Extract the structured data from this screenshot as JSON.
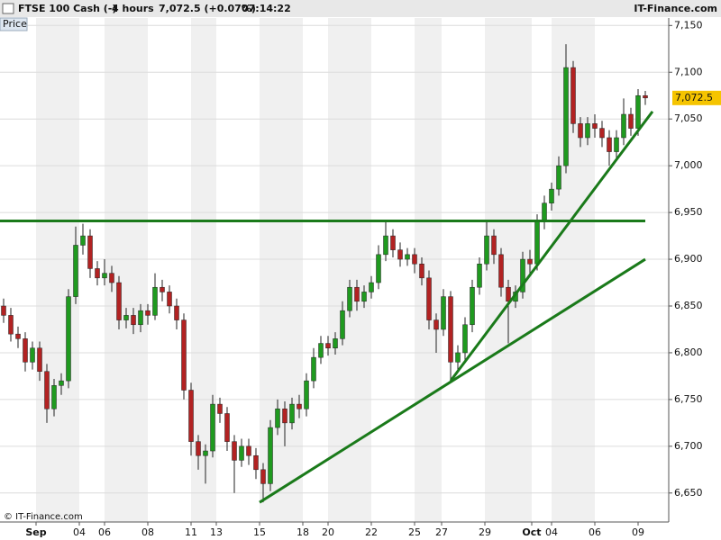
{
  "chart_data": {
    "type": "candlestick",
    "title": "FTSE 100 Cash (-)",
    "interval": "4 hours",
    "quote": "7,072.5 (+0.07%)",
    "time": "07:14:22",
    "brand": "IT-Finance.com",
    "panel_label": "Price",
    "copyright": "© IT-Finance.com",
    "up_color": "#1f9a1f",
    "down_color": "#b22222",
    "x": [
      0,
      1,
      2,
      3,
      4,
      5,
      6,
      7,
      8,
      9,
      10,
      11,
      12,
      13,
      14,
      15,
      16,
      17,
      18,
      19,
      20,
      21,
      22,
      23,
      24,
      25,
      26,
      27,
      28,
      29,
      30,
      31,
      32,
      33,
      34,
      35,
      36,
      37,
      38,
      39,
      40,
      41,
      42,
      43,
      44,
      45,
      46,
      47,
      48,
      49,
      50,
      51,
      52,
      53,
      54,
      55,
      56,
      57,
      58,
      59,
      60,
      61,
      62,
      63,
      64,
      65,
      66,
      67,
      68,
      69,
      70,
      71,
      72,
      73,
      74,
      75,
      76,
      77,
      78,
      79,
      80,
      81,
      82,
      83,
      84,
      85,
      86,
      87,
      88,
      89
    ],
    "open": [
      6850,
      6840,
      6820,
      6815,
      6790,
      6805,
      6780,
      6740,
      6765,
      6770,
      6860,
      6915,
      6925,
      6890,
      6880,
      6885,
      6875,
      6835,
      6840,
      6830,
      6845,
      6840,
      6870,
      6865,
      6850,
      6835,
      6760,
      6705,
      6690,
      6695,
      6745,
      6735,
      6705,
      6685,
      6700,
      6690,
      6675,
      6660,
      6720,
      6740,
      6725,
      6745,
      6740,
      6770,
      6795,
      6810,
      6805,
      6815,
      6845,
      6870,
      6855,
      6865,
      6875,
      6905,
      6925,
      6910,
      6900,
      6905,
      6895,
      6880,
      6835,
      6825,
      6860,
      6790,
      6800,
      6830,
      6870,
      6895,
      6925,
      6905,
      6870,
      6855,
      6865,
      6900,
      6895,
      6940,
      6960,
      6975,
      7000,
      7105,
      7045,
      7030,
      7045,
      7040,
      7030,
      7015,
      7030,
      7055,
      7040,
      7075
    ],
    "high": [
      6858,
      6848,
      6828,
      6822,
      6812,
      6812,
      6788,
      6772,
      6778,
      6868,
      6935,
      6938,
      6932,
      6898,
      6900,
      6893,
      6882,
      6848,
      6848,
      6852,
      6852,
      6885,
      6878,
      6872,
      6858,
      6842,
      6768,
      6712,
      6702,
      6755,
      6752,
      6742,
      6712,
      6708,
      6708,
      6698,
      6682,
      6728,
      6750,
      6748,
      6752,
      6755,
      6778,
      6805,
      6818,
      6818,
      6822,
      6855,
      6878,
      6878,
      6872,
      6882,
      6915,
      6940,
      6932,
      6918,
      6912,
      6912,
      6902,
      6888,
      6842,
      6868,
      6866,
      6808,
      6838,
      6878,
      6902,
      6940,
      6932,
      6912,
      6878,
      6872,
      6908,
      6910,
      6948,
      6968,
      6982,
      7010,
      7130,
      7112,
      7052,
      7052,
      7055,
      7048,
      7038,
      7038,
      7072,
      7062,
      7082,
      7080
    ],
    "low": [
      6832,
      6812,
      6805,
      6780,
      6782,
      6770,
      6725,
      6732,
      6755,
      6762,
      6852,
      6905,
      6880,
      6872,
      6872,
      6865,
      6825,
      6826,
      6820,
      6822,
      6830,
      6835,
      6855,
      6842,
      6825,
      6750,
      6690,
      6675,
      6660,
      6688,
      6725,
      6695,
      6650,
      6678,
      6680,
      6665,
      6640,
      6652,
      6712,
      6700,
      6718,
      6730,
      6732,
      6762,
      6788,
      6797,
      6798,
      6808,
      6838,
      6845,
      6848,
      6858,
      6868,
      6898,
      6902,
      6892,
      6893,
      6885,
      6872,
      6825,
      6800,
      6818,
      6770,
      6782,
      6792,
      6822,
      6862,
      6888,
      6895,
      6860,
      6810,
      6848,
      6858,
      6885,
      6888,
      6932,
      6952,
      6968,
      6992,
      7035,
      7020,
      7022,
      7030,
      7020,
      7000,
      7008,
      7022,
      7032,
      7032,
      7065
    ],
    "close": [
      6840,
      6820,
      6815,
      6790,
      6805,
      6780,
      6740,
      6765,
      6770,
      6860,
      6915,
      6925,
      6890,
      6880,
      6885,
      6875,
      6835,
      6840,
      6830,
      6845,
      6840,
      6870,
      6865,
      6850,
      6835,
      6760,
      6705,
      6690,
      6695,
      6745,
      6735,
      6705,
      6685,
      6700,
      6690,
      6675,
      6660,
      6720,
      6740,
      6725,
      6745,
      6740,
      6770,
      6795,
      6810,
      6805,
      6815,
      6845,
      6870,
      6855,
      6865,
      6875,
      6905,
      6925,
      6910,
      6900,
      6905,
      6895,
      6880,
      6835,
      6825,
      6860,
      6790,
      6800,
      6830,
      6870,
      6895,
      6925,
      6905,
      6870,
      6855,
      6865,
      6900,
      6895,
      6940,
      6960,
      6975,
      7000,
      7105,
      7045,
      7030,
      7045,
      7040,
      7030,
      7015,
      7030,
      7055,
      7040,
      7075,
      7072.5
    ],
    "last_price": {
      "value": 7072.5,
      "label": "7,072.5"
    },
    "last_price_color": "#f5c400",
    "trendlines": [
      {
        "x": [
          -0.5,
          89
        ],
        "y": [
          6941,
          6941
        ],
        "color": "#1a7a1a"
      },
      {
        "x": [
          35.5,
          89
        ],
        "y": [
          6640,
          6900
        ],
        "color": "#1a7a1a"
      },
      {
        "x": [
          62,
          90
        ],
        "y": [
          6770,
          7058
        ],
        "color": "#1a7a1a"
      }
    ],
    "xlim": [
      -0.5,
      92.25
    ],
    "xticks": [
      {
        "value": 4.5,
        "label": "Sep"
      },
      {
        "value": 10.5,
        "label": "04"
      },
      {
        "value": 14,
        "label": "06"
      },
      {
        "value": 20,
        "label": "08"
      },
      {
        "value": 26,
        "label": "11"
      },
      {
        "value": 29.5,
        "label": "13"
      },
      {
        "value": 35.5,
        "label": "15"
      },
      {
        "value": 41.5,
        "label": "18"
      },
      {
        "value": 45,
        "label": "20"
      },
      {
        "value": 51,
        "label": "22"
      },
      {
        "value": 57,
        "label": "25"
      },
      {
        "value": 60.75,
        "label": "27"
      },
      {
        "value": 66.75,
        "label": "29"
      },
      {
        "value": 73.25,
        "label": "Oct"
      },
      {
        "value": 76,
        "label": "04"
      },
      {
        "value": 82,
        "label": "06"
      },
      {
        "value": 88,
        "label": "09"
      }
    ],
    "ylim": [
      6619,
      7158
    ],
    "yticks": [
      {
        "value": 6650,
        "label": "6,650"
      },
      {
        "value": 6700,
        "label": "6,700"
      },
      {
        "value": 6750,
        "label": "6,750"
      },
      {
        "value": 6800,
        "label": "6,800"
      },
      {
        "value": 6850,
        "label": "6,850"
      },
      {
        "value": 6900,
        "label": "6,900"
      },
      {
        "value": 6950,
        "label": "6,950"
      },
      {
        "value": 7000,
        "label": "7,000"
      },
      {
        "value": 7050,
        "label": "7,050"
      },
      {
        "value": 7100,
        "label": "7,100"
      },
      {
        "value": 7150,
        "label": "7,150"
      }
    ],
    "grid": true
  }
}
